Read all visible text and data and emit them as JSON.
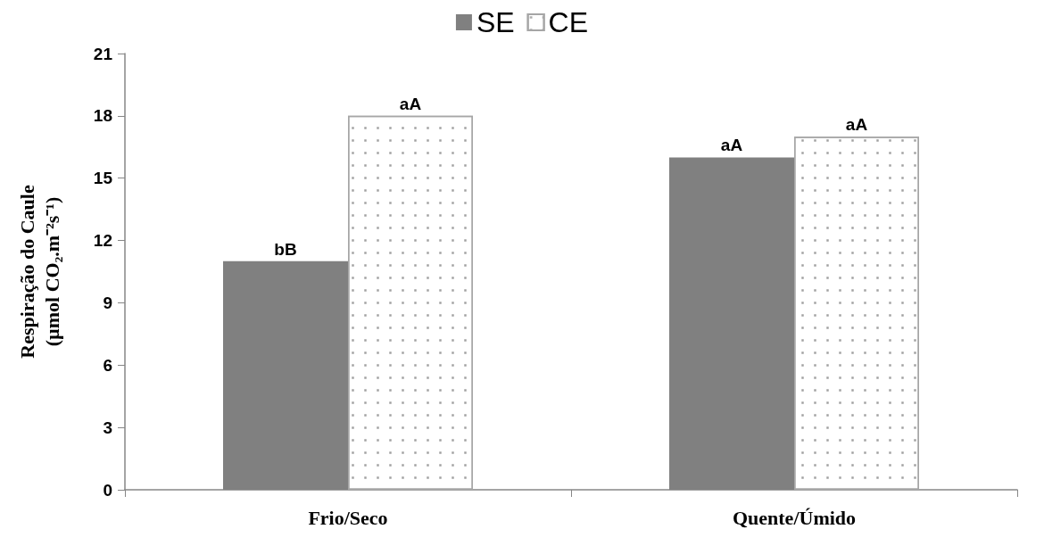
{
  "chart_data": {
    "type": "bar",
    "ylabel": "Respiração do Caule\n(µmol CO₂.m⁻²s⁻¹)",
    "categories": [
      "Frio/Seco",
      "Quente/Úmido"
    ],
    "series": [
      {
        "name": "SE",
        "color": "#808080",
        "values": [
          11,
          16
        ],
        "value_labels": [
          "bB",
          "aA"
        ]
      },
      {
        "name": "CE",
        "color": "#ffffff",
        "values": [
          18,
          17
        ],
        "value_labels": [
          "aA",
          "aA"
        ]
      }
    ],
    "ylim": [
      0,
      21
    ],
    "yticks": [
      0,
      3,
      6,
      9,
      12,
      15,
      18,
      21
    ],
    "grid": false,
    "legend": "top"
  }
}
